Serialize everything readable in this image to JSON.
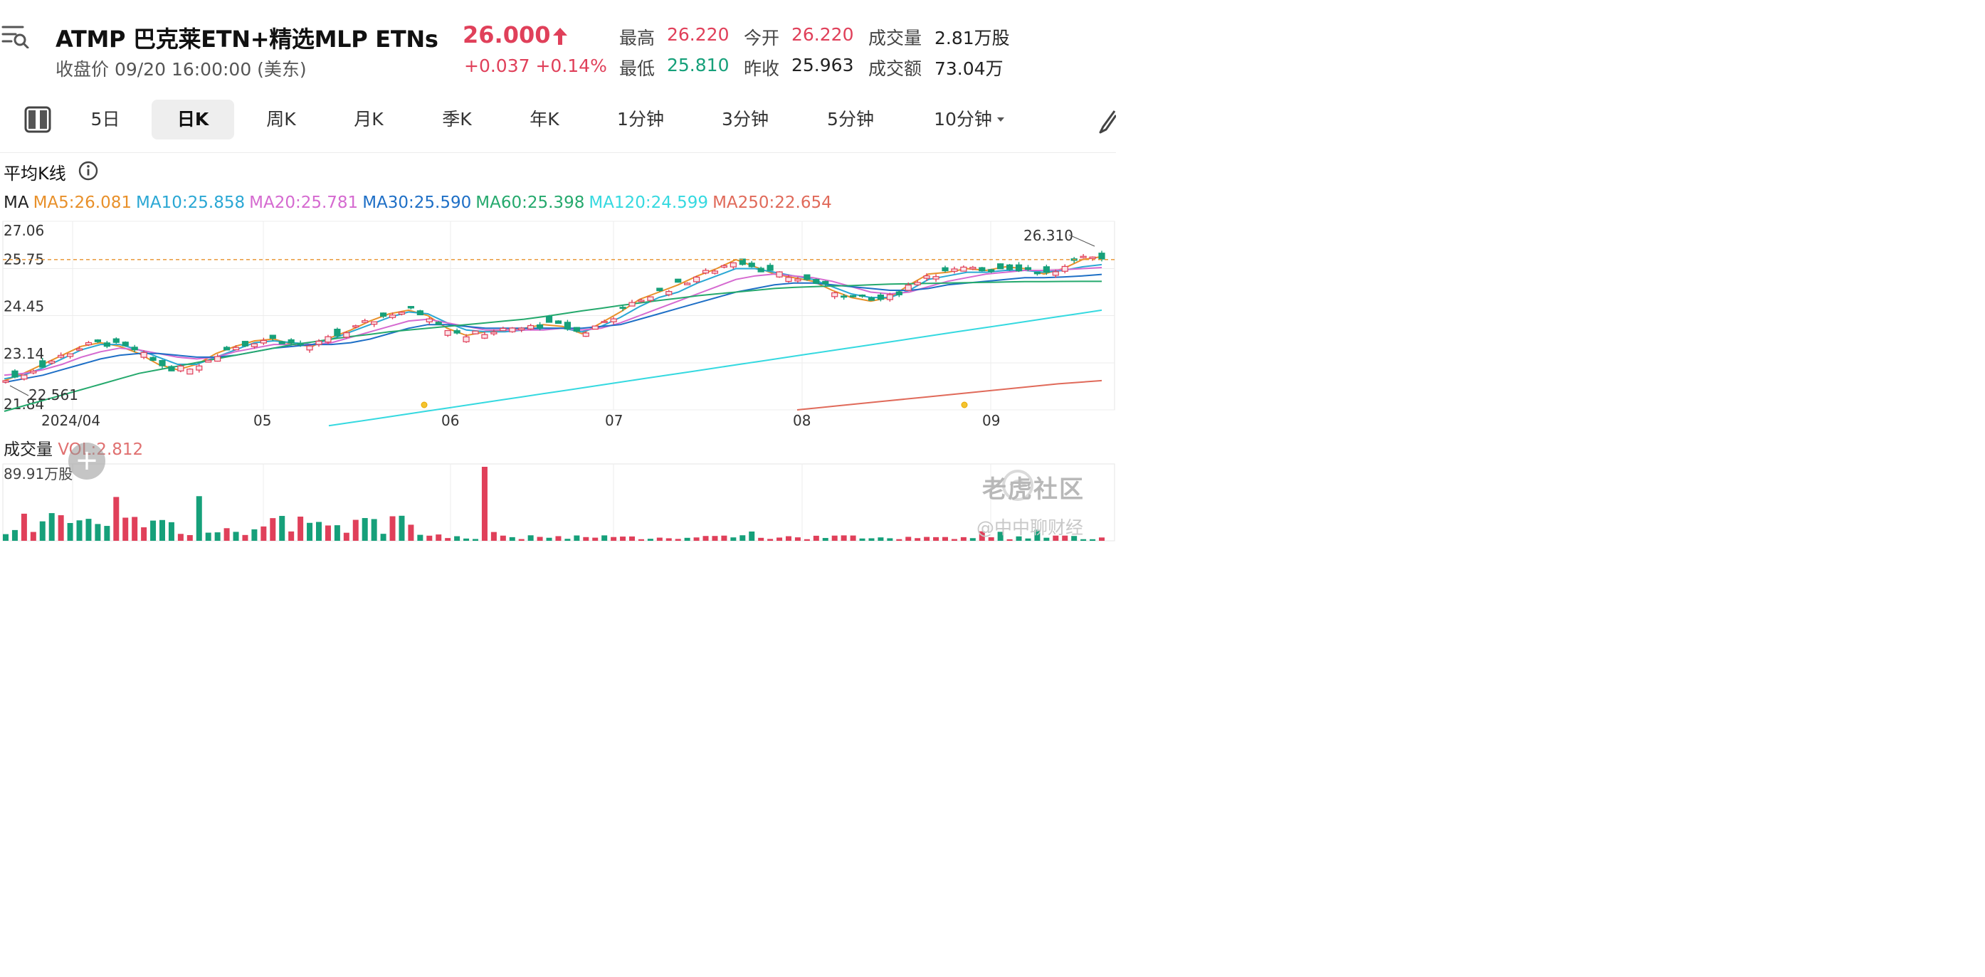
{
  "header": {
    "title": "ATMP  巴克莱ETN+精选MLP ETNs",
    "price": "26.000",
    "subtitle": "收盘价 09/20 16:00:00 (美东)",
    "change": "+0.037 +0.14%",
    "stats": [
      {
        "label": "最高",
        "value": "26.220",
        "color": "red"
      },
      {
        "label": "今开",
        "value": "26.220",
        "color": "red"
      },
      {
        "label": "成交量",
        "value": "2.81万股",
        "color": "dark"
      },
      {
        "label": "最低",
        "value": "25.810",
        "color": "green"
      },
      {
        "label": "昨收",
        "value": "25.963",
        "color": "dark"
      },
      {
        "label": "成交额",
        "value": "73.04万",
        "color": "dark"
      }
    ]
  },
  "tabs": {
    "items": [
      "5日",
      "日K",
      "周K",
      "月K",
      "季K",
      "年K",
      "1分钟",
      "3分钟",
      "5分钟",
      "10分钟"
    ],
    "active": "日K"
  },
  "indicators": {
    "avg_k_label": "平均K线",
    "ma_prefix": "MA",
    "ma": [
      {
        "label": "MA5:26.081",
        "color": "#e8902a"
      },
      {
        "label": "MA10:25.858",
        "color": "#2aa7d4"
      },
      {
        "label": "MA20:25.781",
        "color": "#d56ad0"
      },
      {
        "label": "MA30:25.590",
        "color": "#1e6fc6"
      },
      {
        "label": "MA60:25.398",
        "color": "#25a96d"
      },
      {
        "label": "MA120:24.599",
        "color": "#35d9e0"
      },
      {
        "label": "MA250:22.654",
        "color": "#e06a5a"
      }
    ]
  },
  "colors": {
    "up": "#e0405a",
    "down": "#16a07a"
  },
  "chart_data": {
    "type": "line",
    "y_ticks": [
      "27.06",
      "25.75",
      "24.45",
      "23.14",
      "21.84"
    ],
    "ylim": [
      21.84,
      27.06
    ],
    "x_ticks": [
      "2024/04",
      "05",
      "06",
      "07",
      "08",
      "09"
    ],
    "annotations": {
      "high": "26.310",
      "low": "22.561"
    },
    "last_close": 26.0,
    "grid": true,
    "volume_label": "成交量",
    "volume_value": "VOL:2.812",
    "volume_max": "89.91万股",
    "series": [
      {
        "name": "MA5",
        "color": "#e8902a",
        "values": [
          22.65,
          22.85,
          23.1,
          23.35,
          23.6,
          23.7,
          23.6,
          23.4,
          23.1,
          22.95,
          23.1,
          23.4,
          23.6,
          23.75,
          23.8,
          23.65,
          23.6,
          23.85,
          24.05,
          24.3,
          24.5,
          24.6,
          24.45,
          24.1,
          23.9,
          24.0,
          24.05,
          24.1,
          24.2,
          24.15,
          23.95,
          24.25,
          24.55,
          24.9,
          25.1,
          25.3,
          25.55,
          25.75,
          26.0,
          25.8,
          25.6,
          25.5,
          25.4,
          25.15,
          24.95,
          24.85,
          24.95,
          25.3,
          25.6,
          25.65,
          25.75,
          25.7,
          25.8,
          25.75,
          25.6,
          25.75,
          26.0,
          26.08
        ]
      },
      {
        "name": "MA10",
        "color": "#2aa7d4",
        "values": [
          22.7,
          22.8,
          23.0,
          23.25,
          23.5,
          23.65,
          23.65,
          23.5,
          23.3,
          23.1,
          23.1,
          23.3,
          23.5,
          23.7,
          23.75,
          23.7,
          23.65,
          23.8,
          24.0,
          24.2,
          24.4,
          24.55,
          24.5,
          24.25,
          24.05,
          24.0,
          24.0,
          24.05,
          24.1,
          24.1,
          24.0,
          24.15,
          24.4,
          24.7,
          24.95,
          25.1,
          25.35,
          25.55,
          25.75,
          25.75,
          25.65,
          25.55,
          25.45,
          25.25,
          25.05,
          24.95,
          24.95,
          25.15,
          25.45,
          25.55,
          25.65,
          25.65,
          25.7,
          25.7,
          25.65,
          25.7,
          25.8,
          25.86
        ]
      },
      {
        "name": "MA20",
        "color": "#d56ad0",
        "values": [
          22.8,
          22.85,
          22.95,
          23.1,
          23.3,
          23.45,
          23.55,
          23.5,
          23.4,
          23.3,
          23.25,
          23.3,
          23.45,
          23.55,
          23.65,
          23.65,
          23.65,
          23.7,
          23.85,
          24.0,
          24.15,
          24.3,
          24.35,
          24.25,
          24.15,
          24.05,
          24.05,
          24.05,
          24.05,
          24.1,
          24.05,
          24.1,
          24.25,
          24.45,
          24.65,
          24.85,
          25.05,
          25.25,
          25.45,
          25.55,
          25.6,
          25.55,
          25.5,
          25.4,
          25.25,
          25.1,
          25.05,
          25.1,
          25.25,
          25.4,
          25.5,
          25.6,
          25.65,
          25.7,
          25.7,
          25.72,
          25.75,
          25.78
        ]
      },
      {
        "name": "MA30",
        "color": "#1e6fc6",
        "values": [
          22.6,
          22.7,
          22.8,
          22.95,
          23.1,
          23.25,
          23.35,
          23.4,
          23.4,
          23.35,
          23.3,
          23.3,
          23.35,
          23.45,
          23.55,
          23.6,
          23.65,
          23.65,
          23.7,
          23.8,
          23.95,
          24.1,
          24.2,
          24.2,
          24.15,
          24.1,
          24.1,
          24.1,
          24.1,
          24.1,
          24.1,
          24.15,
          24.2,
          24.35,
          24.5,
          24.65,
          24.8,
          24.95,
          25.1,
          25.2,
          25.3,
          25.35,
          25.35,
          25.3,
          25.25,
          25.2,
          25.15,
          25.15,
          25.2,
          25.3,
          25.35,
          25.4,
          25.45,
          25.5,
          25.5,
          25.52,
          25.55,
          25.59
        ]
      },
      {
        "name": "MA60",
        "color": "#25a96d",
        "values": [
          21.8,
          21.95,
          22.1,
          22.25,
          22.4,
          22.55,
          22.7,
          22.85,
          22.95,
          23.05,
          23.15,
          23.25,
          23.35,
          23.45,
          23.55,
          23.65,
          23.72,
          23.8,
          23.87,
          23.93,
          24.0,
          24.05,
          24.1,
          24.15,
          24.2,
          24.25,
          24.3,
          24.35,
          24.42,
          24.5,
          24.58,
          24.65,
          24.73,
          24.8,
          24.87,
          24.93,
          25.0,
          25.05,
          25.1,
          25.15,
          25.2,
          25.23,
          25.25,
          25.27,
          25.28,
          25.3,
          25.32,
          25.33,
          25.34,
          25.35,
          25.36,
          25.37,
          25.38,
          25.39,
          25.39,
          25.395,
          25.397,
          25.398
        ]
      },
      {
        "name": "MA120",
        "color": "#35d9e0",
        "values": [
          21.4,
          21.5,
          21.6,
          21.7,
          21.8,
          21.9,
          22.0,
          22.1,
          22.2,
          22.3,
          22.4,
          22.5,
          22.6,
          22.7,
          22.8,
          22.9,
          23.0,
          23.1,
          23.2,
          23.3,
          23.4,
          23.5,
          23.6,
          23.7,
          23.8,
          23.9,
          24.0,
          24.1,
          24.2,
          24.3,
          24.4,
          24.5,
          24.6
        ]
      },
      {
        "name": "MA250",
        "color": "#e06a5a",
        "values": [
          21.84,
          21.96,
          22.08,
          22.2,
          22.32,
          22.44,
          22.56,
          22.65
        ]
      }
    ]
  },
  "watermark": {
    "brand": "老虎社区",
    "credit": "@中中聊财经"
  }
}
